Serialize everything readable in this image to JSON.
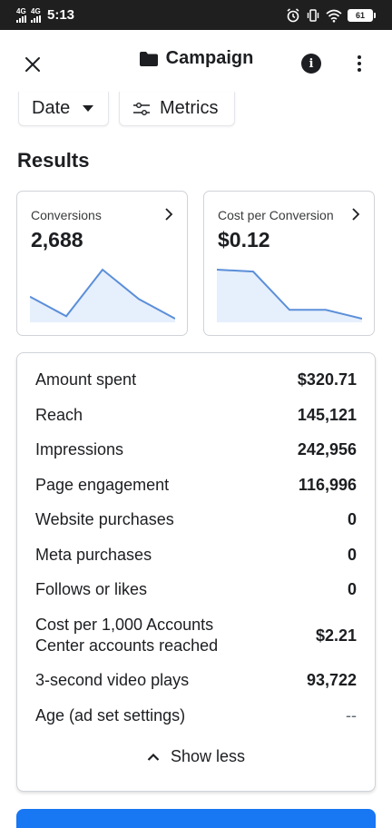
{
  "status_bar": {
    "net1": "4G",
    "net2": "4G",
    "time": "5:13",
    "battery": "61"
  },
  "header": {
    "title": "Campaign",
    "icons": {
      "close": "close-icon",
      "folder": "folder-icon",
      "info": "info-icon",
      "more": "more-vertical-icon"
    }
  },
  "filters": {
    "date_label": "Date",
    "metrics_label": "Metrics"
  },
  "results": {
    "title": "Results",
    "cards": [
      {
        "label": "Conversions",
        "value": "2,688",
        "trend": [
          0.45,
          0.05,
          1.0,
          0.4,
          0.0
        ]
      },
      {
        "label": "Cost per Conversion",
        "value": "$0.12",
        "trend": [
          1.0,
          0.96,
          0.18,
          0.18,
          0.0
        ]
      }
    ]
  },
  "details": {
    "rows": [
      {
        "label": "Amount spent",
        "value": "$320.71"
      },
      {
        "label": "Reach",
        "value": "145,121"
      },
      {
        "label": "Impressions",
        "value": "242,956"
      },
      {
        "label": "Page engagement",
        "value": "116,996"
      },
      {
        "label": "Website purchases",
        "value": "0"
      },
      {
        "label": "Meta purchases",
        "value": "0"
      },
      {
        "label": "Follows or likes",
        "value": "0"
      },
      {
        "label": "Cost per 1,000 Accounts Center accounts reached",
        "label_line1": "Cost per 1,000 Accounts",
        "label_line2": "Center accounts reached",
        "value": "$2.21"
      },
      {
        "label": "3-second video plays",
        "value": "93,722"
      },
      {
        "label": "Age (ad set settings)",
        "value": "--"
      }
    ],
    "show_less_label": "Show less"
  },
  "colors": {
    "accent": "#1877f2",
    "spark_line": "#5b8fd9",
    "spark_fill": "#e6effc",
    "text": "#1c1e21"
  }
}
